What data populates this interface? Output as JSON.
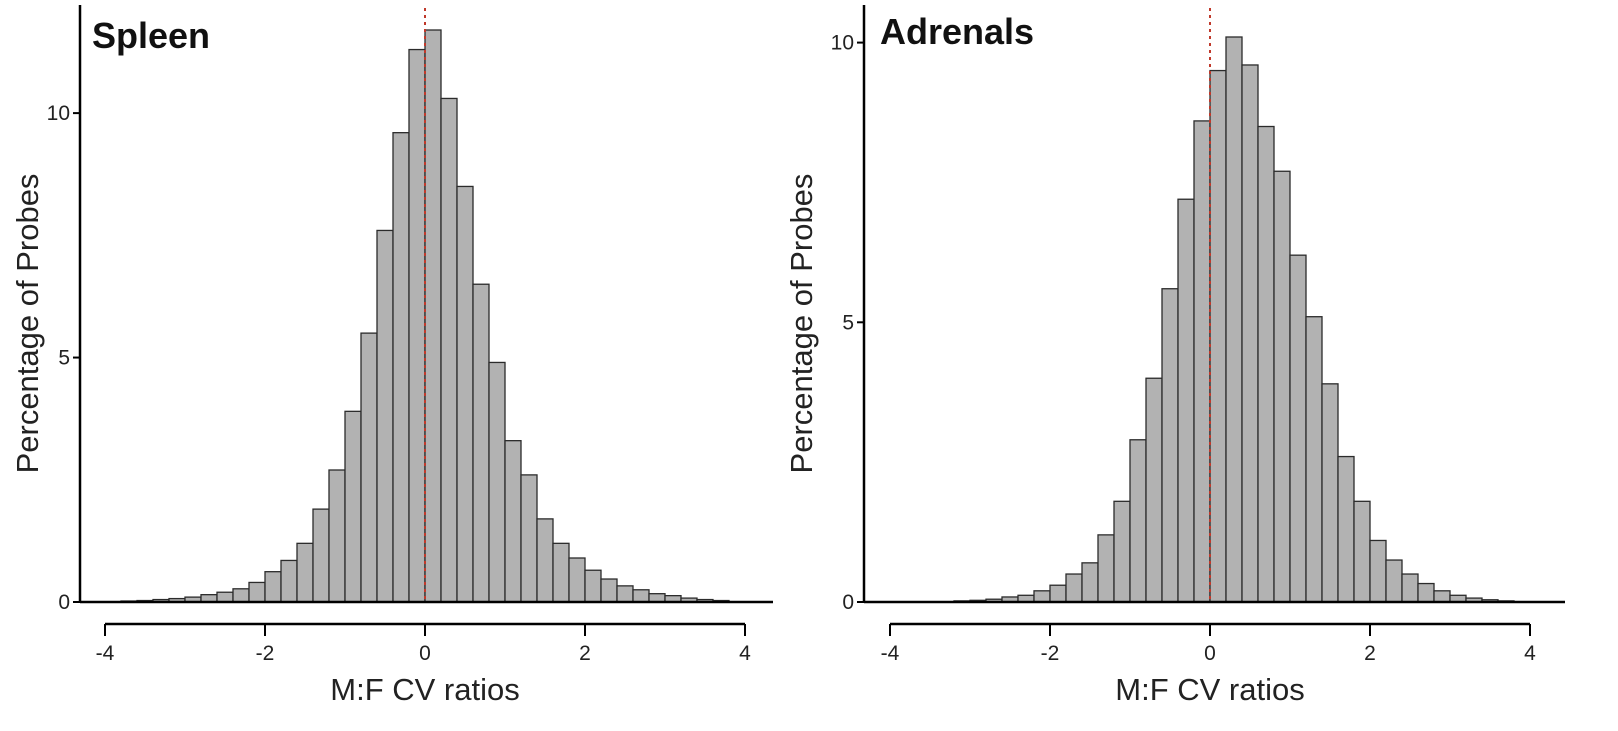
{
  "chart_data": [
    {
      "type": "bar",
      "title": "Spleen",
      "xlabel": "M:F CV ratios",
      "ylabel": "Percentage of Probes",
      "xlim": [
        -4,
        4
      ],
      "ylim": [
        0,
        11.7
      ],
      "x_ticks": [
        -4,
        -2,
        0,
        2,
        4
      ],
      "y_ticks": [
        0,
        5,
        10
      ],
      "bin_width": 0.2,
      "reference_line": {
        "x": 0,
        "color": "#c0392b",
        "style": "dotted"
      },
      "bin_left_edges": [
        -3.8,
        -3.6,
        -3.4,
        -3.2,
        -3.0,
        -2.8,
        -2.6,
        -2.4,
        -2.2,
        -2.0,
        -1.8,
        -1.6,
        -1.4,
        -1.2,
        -1.0,
        -0.8,
        -0.6,
        -0.4,
        -0.2,
        0.0,
        0.2,
        0.4,
        0.6,
        0.8,
        1.0,
        1.2,
        1.4,
        1.6,
        1.8,
        2.0,
        2.2,
        2.4,
        2.6,
        2.8,
        3.0,
        3.2,
        3.4,
        3.6
      ],
      "values": [
        0.02,
        0.03,
        0.05,
        0.07,
        0.1,
        0.15,
        0.2,
        0.27,
        0.4,
        0.62,
        0.85,
        1.2,
        1.9,
        2.7,
        3.9,
        5.5,
        7.6,
        9.6,
        11.3,
        11.7,
        10.3,
        8.5,
        6.5,
        4.9,
        3.3,
        2.6,
        1.7,
        1.2,
        0.9,
        0.65,
        0.47,
        0.33,
        0.25,
        0.17,
        0.13,
        0.08,
        0.05,
        0.03
      ]
    },
    {
      "type": "bar",
      "title": "Adrenals",
      "xlabel": "M:F CV ratios",
      "ylabel": "Percentage of Probes",
      "xlim": [
        -4,
        4
      ],
      "ylim": [
        0,
        10.1
      ],
      "x_ticks": [
        -4,
        -2,
        0,
        2,
        4
      ],
      "y_ticks": [
        0,
        5,
        10
      ],
      "bin_width": 0.2,
      "reference_line": {
        "x": 0,
        "color": "#c0392b",
        "style": "dotted"
      },
      "bin_left_edges": [
        -3.2,
        -3.0,
        -2.8,
        -2.6,
        -2.4,
        -2.2,
        -2.0,
        -1.8,
        -1.6,
        -1.4,
        -1.2,
        -1.0,
        -0.8,
        -0.6,
        -0.4,
        -0.2,
        0.0,
        0.2,
        0.4,
        0.6,
        0.8,
        1.0,
        1.2,
        1.4,
        1.6,
        1.8,
        2.0,
        2.2,
        2.4,
        2.6,
        2.8,
        3.0,
        3.2,
        3.4,
        3.6
      ],
      "values": [
        0.02,
        0.03,
        0.05,
        0.09,
        0.12,
        0.2,
        0.3,
        0.5,
        0.7,
        1.2,
        1.8,
        2.9,
        4.0,
        5.6,
        7.2,
        8.6,
        9.5,
        10.1,
        9.6,
        8.5,
        7.7,
        6.2,
        5.1,
        3.9,
        2.6,
        1.8,
        1.1,
        0.75,
        0.5,
        0.33,
        0.2,
        0.12,
        0.07,
        0.04,
        0.02
      ]
    }
  ]
}
